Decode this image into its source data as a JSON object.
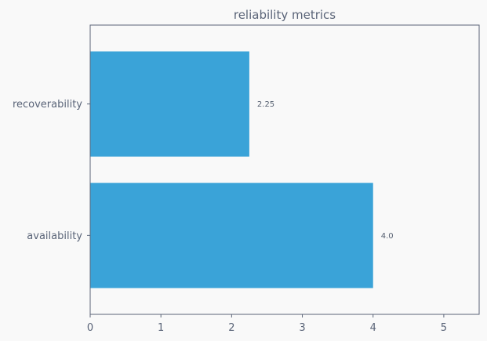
{
  "chart_data": {
    "type": "bar",
    "orientation": "horizontal",
    "title": "reliability metrics",
    "xlabel": "",
    "ylabel": "",
    "categories": [
      "availability",
      "recoverability"
    ],
    "values": [
      4.0,
      2.25
    ],
    "data_labels": [
      "4.0",
      "2.25"
    ],
    "xlim": [
      0,
      5.5
    ],
    "xticks": [
      0,
      1,
      2,
      3,
      4,
      5
    ],
    "grid": false,
    "bar_color": "#3aa3d8",
    "background": "#f9f9f9",
    "axis_color": "#5a6478"
  }
}
